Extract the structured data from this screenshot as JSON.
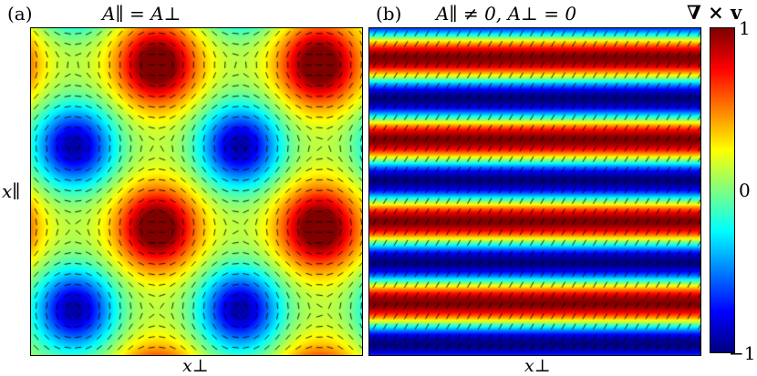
{
  "panels": [
    {
      "id": "a",
      "tag": "(a)",
      "equation": "A∥ = A⊥",
      "xlabel": "x⊥",
      "ylabel": "x∥",
      "pattern": "hexagonal"
    },
    {
      "id": "b",
      "tag": "(b)",
      "equation": "A∥ ≠ 0, A⊥ = 0",
      "xlabel": "x⊥",
      "pattern": "stripes"
    }
  ],
  "colorbar": {
    "title": "∇ × v",
    "ticks": [
      "1",
      "0",
      "−1"
    ],
    "range": [
      -1,
      1
    ],
    "colormap": "jet"
  }
}
